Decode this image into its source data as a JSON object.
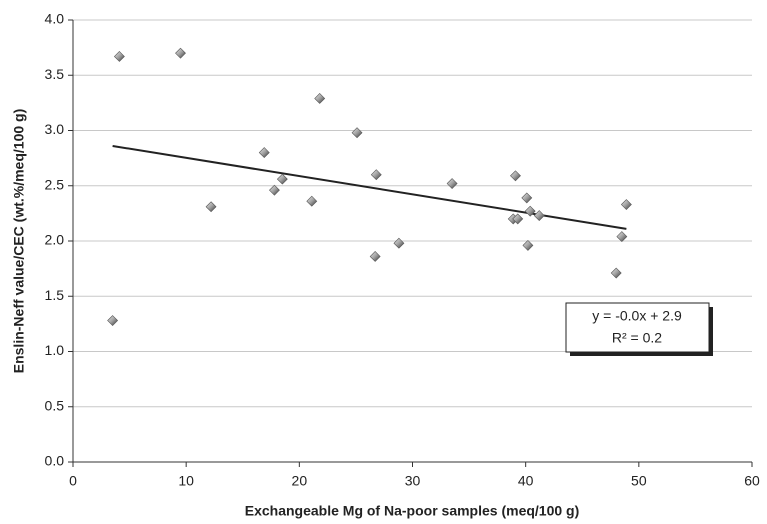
{
  "chart_data": {
    "type": "scatter",
    "xlabel": "Exchangeable Mg of Na-poor samples (meq/100 g)",
    "ylabel": "Enslin-Neff value/CEC (wt.%/meq/100 g)",
    "xlim": [
      0,
      60
    ],
    "ylim": [
      0,
      4.0
    ],
    "xticks": [
      0,
      10,
      20,
      30,
      40,
      50,
      60
    ],
    "yticks": [
      {
        "value": 0,
        "label": "0.0"
      },
      0.5,
      {
        "value": 1,
        "label": "1.0"
      },
      1.5,
      {
        "value": 2,
        "label": "2.0"
      },
      2.5,
      {
        "value": 3,
        "label": "3.0"
      },
      3.5,
      {
        "value": 4,
        "label": "4.0"
      }
    ],
    "grid": true,
    "series": [
      {
        "color": "#9a9a9a",
        "x": [
          3.5,
          4.1,
          9.5,
          12.2,
          16.9,
          17.8,
          18.5,
          21.1,
          21.8,
          25.1,
          26.8,
          26.7,
          28.8,
          33.5,
          38.9,
          39.1,
          39.3,
          40.1,
          40.4,
          40.2,
          41.2,
          48.0,
          48.5,
          48.9
        ],
        "values": [
          1.28,
          3.67,
          3.7,
          2.31,
          2.8,
          2.46,
          2.56,
          2.36,
          3.29,
          2.98,
          2.6,
          1.86,
          1.98,
          2.52,
          2.2,
          2.59,
          2.2,
          2.39,
          2.27,
          1.96,
          2.23,
          1.71,
          2.04,
          2.33
        ]
      }
    ],
    "trendline": {
      "x": [
        3.5,
        48.9
      ],
      "values": [
        2.86,
        2.11
      ],
      "color": "#222222"
    },
    "annotations": [
      "y = -0.0x + 2.9",
      "R² = 0.2"
    ]
  }
}
